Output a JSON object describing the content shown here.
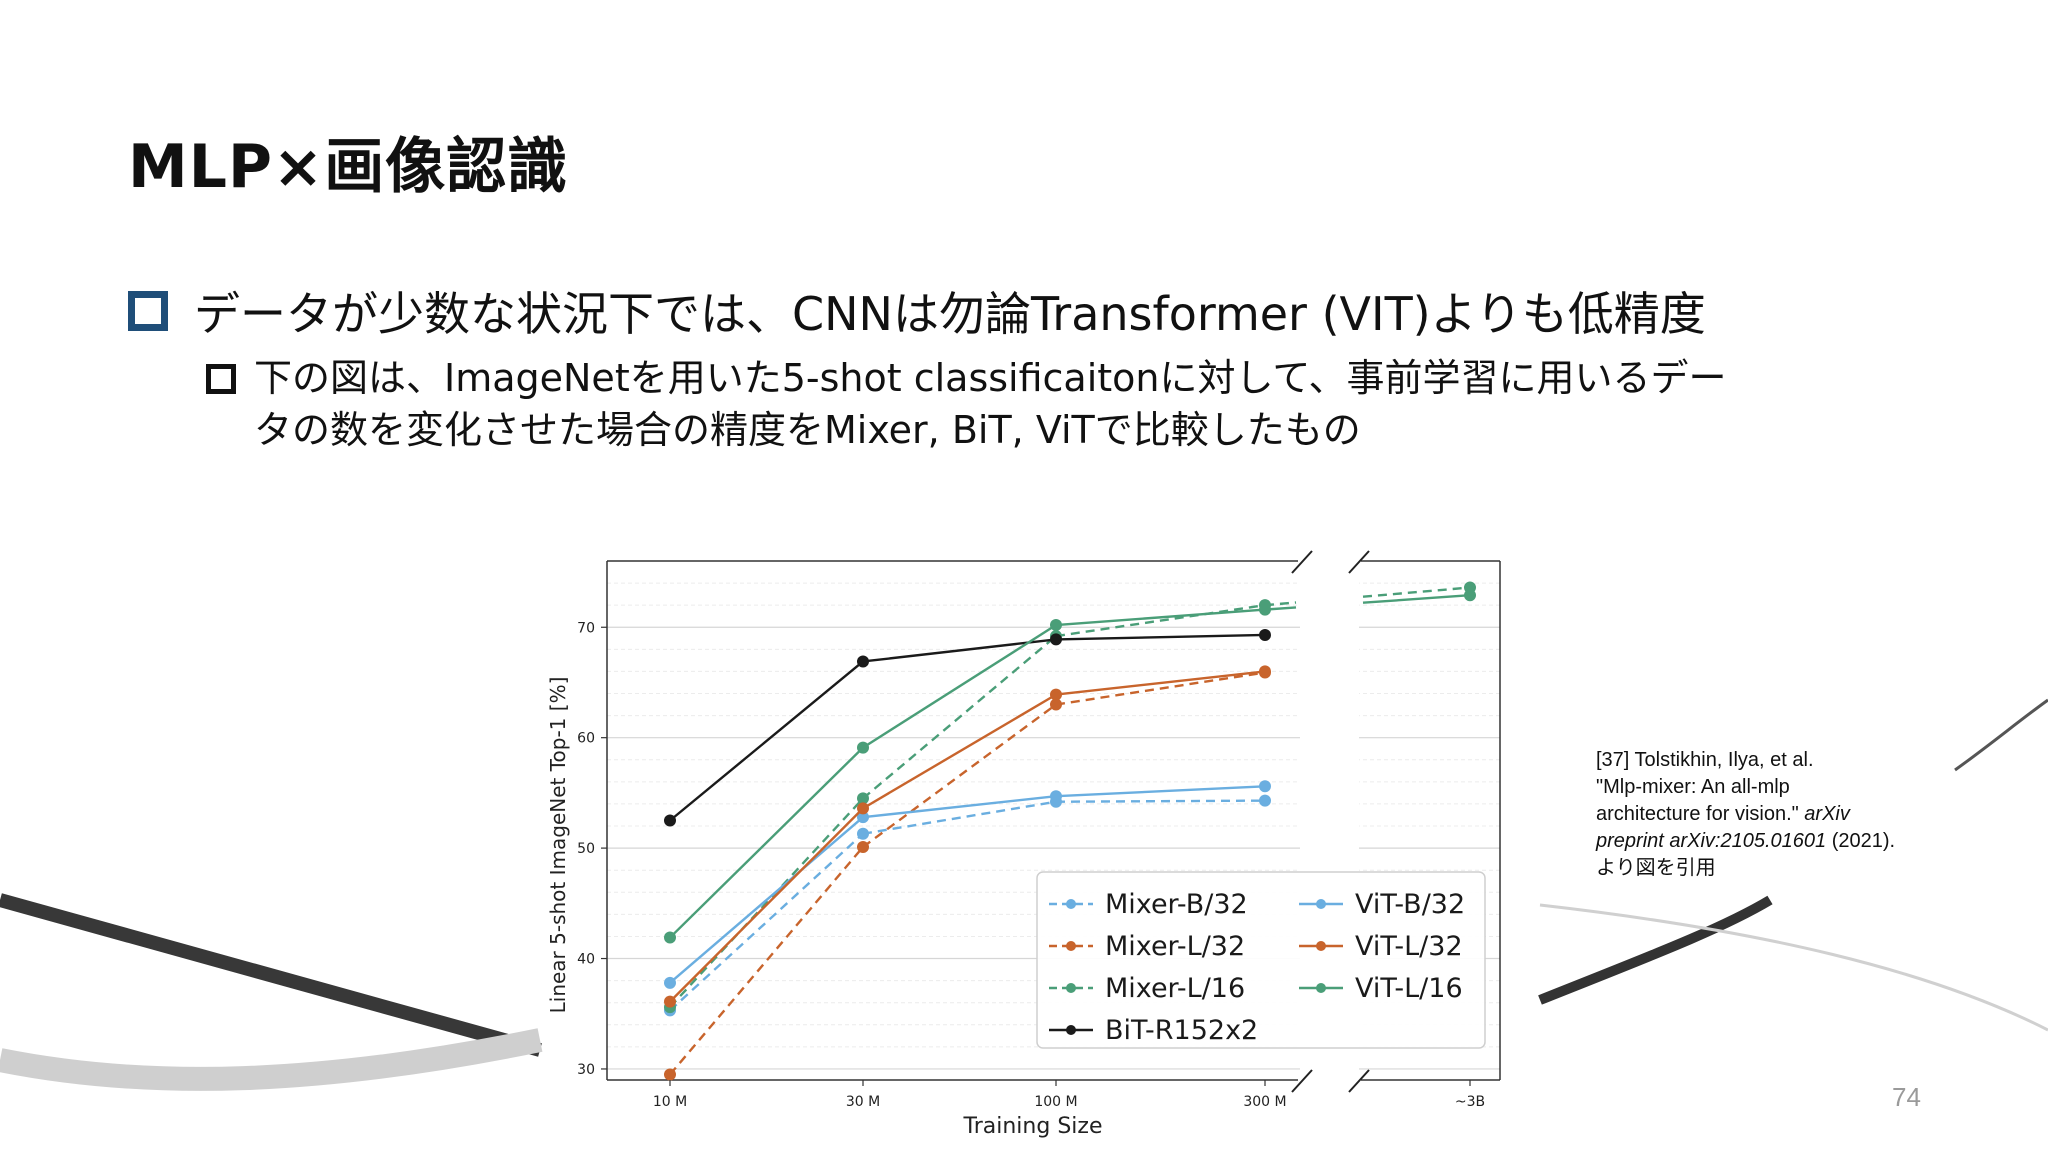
{
  "slide": {
    "title": "MLP×画像認識",
    "bullet1": "データが少数な状況下では、CNNは勿論Transformer (VIT)よりも低精度",
    "bullet2_line1": "下の図は、ImageNetを用いた5-shot classificaitonに対して、事前学習に用いるデー",
    "bullet2_line2": "タの数を変化させた場合の精度をMixer, BiT, ViTで比較したもの",
    "citation": {
      "line1": "[37] Tolstikhin, Ilya, et al.",
      "line2": "\"Mlp-mixer: An all-mlp",
      "line3": "architecture for vision.\"",
      "line4_italic": "arXiv",
      "line5_italic": "preprint arXiv:2105.01601",
      "line5_rest": " (2021).",
      "line6": "より図を引用"
    },
    "page_number": "74"
  },
  "chart_data": {
    "type": "line",
    "xlabel": "Training Size",
    "ylabel": "Linear 5-shot ImageNet Top-1 [%]",
    "categories": [
      "10 M",
      "30 M",
      "100 M",
      "300 M",
      "~3B"
    ],
    "yticks": [
      "30",
      "40",
      "50",
      "60",
      "70"
    ],
    "ylim": [
      29,
      76
    ],
    "grid": true,
    "legend_position": "bottom-right",
    "series": [
      {
        "name": "Mixer-B/32",
        "color": "#6aaee0",
        "style": "dashed",
        "values": [
          35.3,
          51.3,
          54.2,
          54.3,
          null
        ]
      },
      {
        "name": "Mixer-L/32",
        "color": "#c8642c",
        "style": "dashed",
        "values": [
          29.5,
          50.1,
          63.0,
          65.9,
          null
        ]
      },
      {
        "name": "Mixer-L/16",
        "color": "#4a9e78",
        "style": "dashed",
        "values": [
          35.6,
          54.5,
          69.2,
          72.0,
          73.6
        ]
      },
      {
        "name": "BiT-R152x2",
        "color": "#1a1a1a",
        "style": "solid",
        "values": [
          52.5,
          66.9,
          68.9,
          69.3,
          null
        ]
      },
      {
        "name": "ViT-B/32",
        "color": "#6aaee0",
        "style": "solid",
        "values": [
          37.8,
          52.8,
          54.7,
          55.6,
          null
        ]
      },
      {
        "name": "ViT-L/32",
        "color": "#c8642c",
        "style": "solid",
        "values": [
          36.1,
          53.6,
          63.9,
          66.0,
          null
        ]
      },
      {
        "name": "ViT-L/16",
        "color": "#4a9e78",
        "style": "solid",
        "values": [
          41.9,
          59.1,
          70.2,
          71.6,
          72.9
        ]
      }
    ]
  }
}
